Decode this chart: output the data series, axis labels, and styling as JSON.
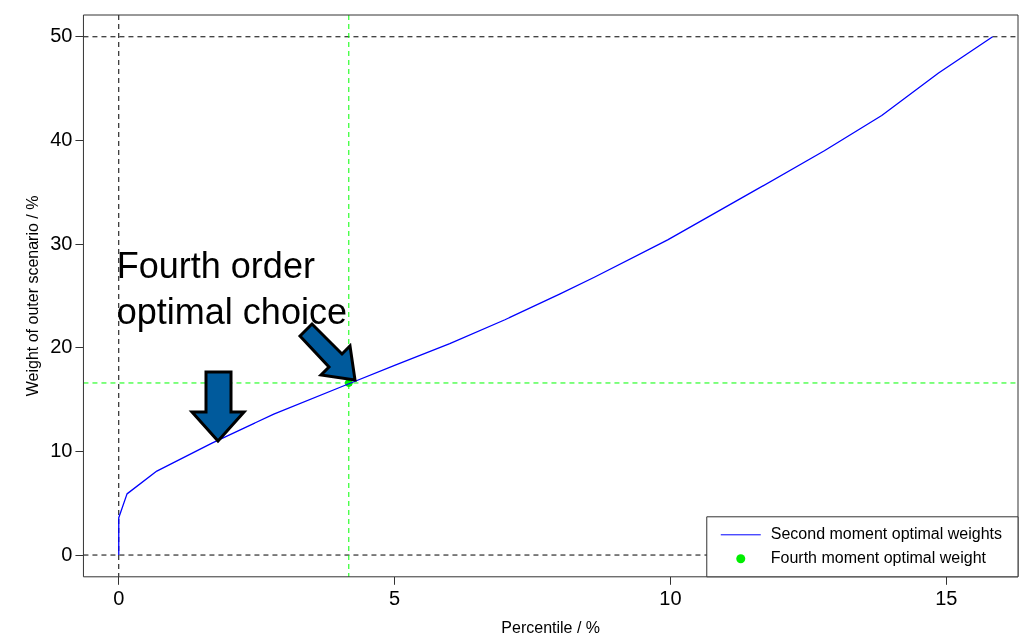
{
  "chart_data": {
    "type": "line",
    "xlabel": "Percentile / %",
    "ylabel": "Weight of outer scenario / %",
    "xlim": [
      -0.64,
      16.3
    ],
    "ylim": [
      -2.1,
      52.1
    ],
    "xticks": [
      0,
      5,
      10,
      15
    ],
    "yticks": [
      0,
      10,
      20,
      30,
      40,
      50
    ],
    "grid": false,
    "legend": "bottom right",
    "series": [
      {
        "name": "Second moment optimal weights",
        "color": "#0000ff",
        "marker": "none",
        "line_style": "solid",
        "x": [
          0,
          0,
          0.15,
          0.69,
          1.69,
          2.81,
          4.16,
          5,
          6,
          7,
          8,
          8.62,
          9.95,
          11.54,
          12.79,
          13.83,
          14.86,
          15.84
        ],
        "values": [
          0,
          3.6,
          5.9,
          8.1,
          10.8,
          13.6,
          16.5,
          18.3,
          20.4,
          22.7,
          25.2,
          26.8,
          30.4,
          35.2,
          39.0,
          42.4,
          46.5,
          50
        ]
      },
      {
        "name": "Fourth moment optimal weight",
        "type": "scatter",
        "color": "#00ee00",
        "marker": "circle",
        "x": [
          4.17
        ],
        "values": [
          16.6
        ]
      }
    ],
    "ref_lines": [
      {
        "axis": "x",
        "value": 0,
        "color": "#000000",
        "line_style": "dashed"
      },
      {
        "axis": "y",
        "value": 0,
        "color": "#000000",
        "line_style": "dashed"
      },
      {
        "axis": "y",
        "value": 50,
        "color": "#000000",
        "line_style": "dashed"
      },
      {
        "axis": "x",
        "value": 4.17,
        "color": "#00ff00",
        "line_style": "dashed"
      },
      {
        "axis": "y",
        "value": 16.6,
        "color": "#00ff00",
        "line_style": "dashed"
      }
    ],
    "annotations": [
      {
        "text": "Fourth order optimal choice",
        "x": 4.17,
        "y": 16.6
      }
    ]
  }
}
